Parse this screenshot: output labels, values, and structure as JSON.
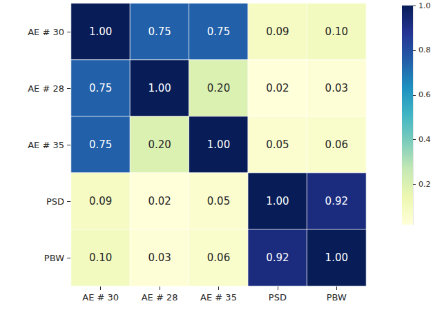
{
  "chart_data": {
    "type": "heatmap",
    "x": [
      "AE # 30",
      "AE # 28",
      "AE # 35",
      "PSD",
      "PBW"
    ],
    "y": [
      "AE # 30",
      "AE # 28",
      "AE # 35",
      "PSD",
      "PBW"
    ],
    "values": [
      [
        1.0,
        0.75,
        0.75,
        0.09,
        0.1
      ],
      [
        0.75,
        1.0,
        0.2,
        0.02,
        0.03
      ],
      [
        0.75,
        0.2,
        1.0,
        0.05,
        0.06
      ],
      [
        0.09,
        0.02,
        0.05,
        1.0,
        0.92
      ],
      [
        0.1,
        0.03,
        0.06,
        0.92,
        1.0
      ]
    ],
    "value_labels": [
      [
        "1.00",
        "0.75",
        "0.75",
        "0.09",
        "0.10"
      ],
      [
        "0.75",
        "1.00",
        "0.20",
        "0.02",
        "0.03"
      ],
      [
        "0.75",
        "0.20",
        "1.00",
        "0.05",
        "0.06"
      ],
      [
        "0.09",
        "0.02",
        "0.05",
        "1.00",
        "0.92"
      ],
      [
        "0.10",
        "0.03",
        "0.06",
        "0.92",
        "1.00"
      ]
    ],
    "data_labels": true,
    "colorbar_range": [
      0.02,
      1.0
    ],
    "colorbar_ticks": [
      0.2,
      0.4,
      0.6,
      0.8,
      {
        "value": 1.0,
        "label": "1.0"
      }
    ]
  }
}
